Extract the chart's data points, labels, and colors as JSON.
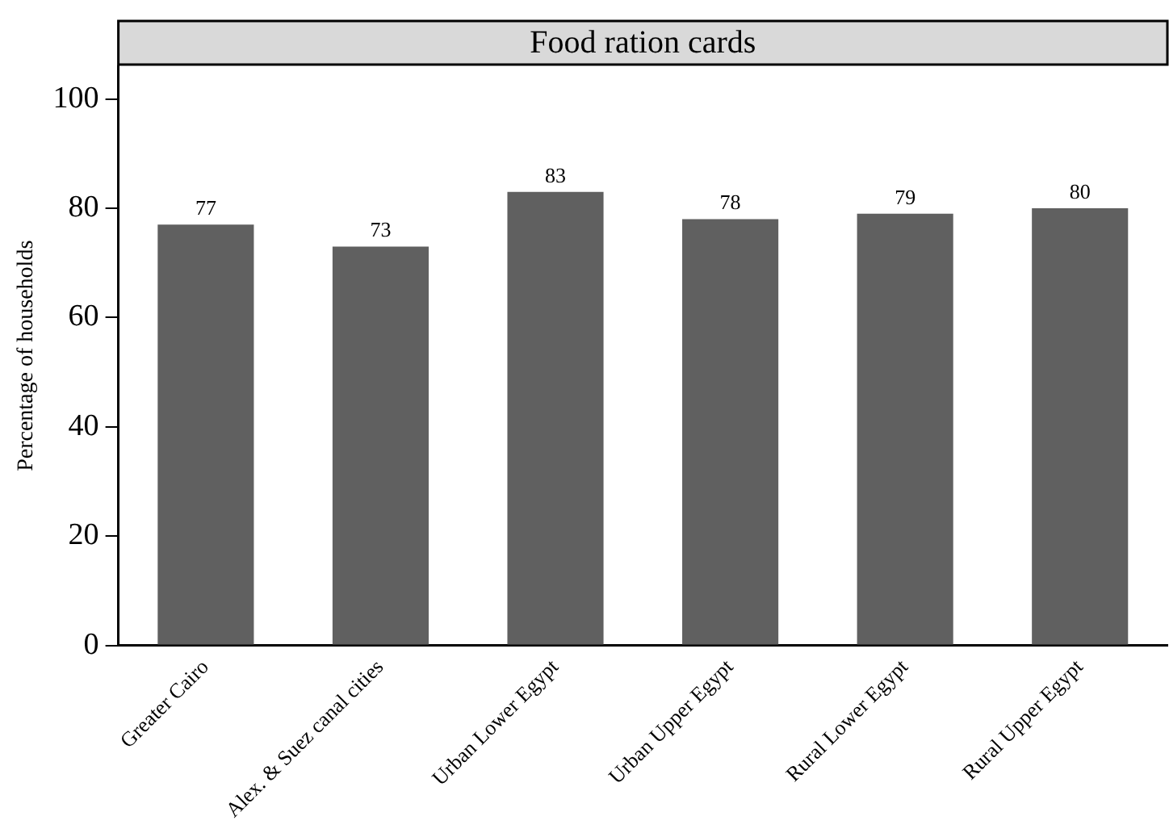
{
  "chart_data": {
    "type": "bar",
    "title": "Food ration cards",
    "ylabel": "Percentage of households",
    "categories": [
      "Greater Cairo",
      "Alex. & Suez canal cities",
      "Urban Lower Egypt",
      "Urban Upper Egypt",
      "Rural Lower Egypt",
      "Rural Upper Egypt"
    ],
    "values": [
      77,
      73,
      83,
      78,
      79,
      80
    ],
    "color": "#606060",
    "ylim": [
      0,
      106
    ],
    "yticks": [
      0,
      20,
      40,
      60,
      80,
      100
    ],
    "grid": false,
    "legend": false,
    "data_labels": true
  }
}
